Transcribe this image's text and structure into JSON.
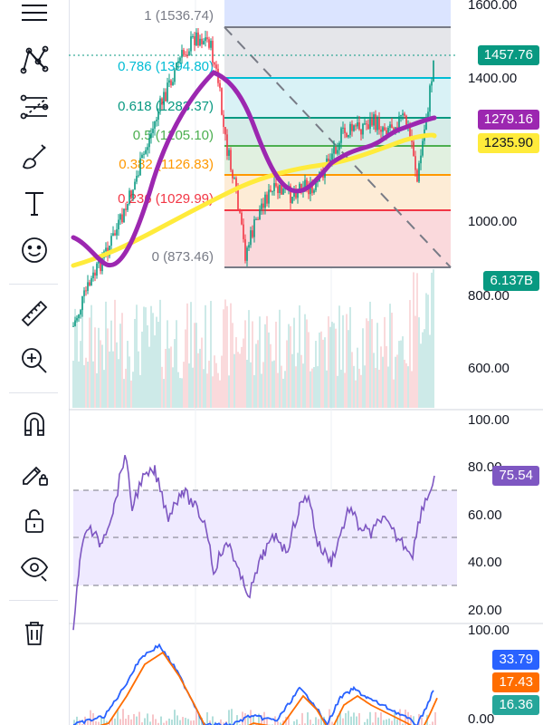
{
  "toolbar": {
    "tools": [
      "menu-icon",
      "pattern-icon",
      "fib-retracement-icon",
      "brush-icon",
      "text-icon",
      "emoji-icon",
      "ruler-icon",
      "zoom-in-icon",
      "magnet-icon",
      "lock-drawing-icon",
      "unlock-icon",
      "eye-icon",
      "trash-icon"
    ]
  },
  "main_pane": {
    "price_axis": [
      "1600.00",
      "1400.00",
      "1000.00",
      "800.00",
      "600.00"
    ],
    "fib_levels": [
      {
        "ratio": "1",
        "price": "(1536.74)",
        "label": "1 (1536.74)",
        "color": "#787b86"
      },
      {
        "ratio": "0.786",
        "price": "(1394.80)",
        "label": "0.786 (1394.80)",
        "color": "#00bcd4"
      },
      {
        "ratio": "0.618",
        "price": "(1283.37)",
        "label": "0.618 (1283.37)",
        "color": "#089981"
      },
      {
        "ratio": "0.5",
        "price": "(1205.10)",
        "label": "0.5 (1205.10)",
        "color": "#4caf50"
      },
      {
        "ratio": "0.382",
        "price": "(1126.83)",
        "label": "0.382 (1126.83)",
        "color": "#ff9800"
      },
      {
        "ratio": "0.236",
        "price": "(1029.99)",
        "label": "0.236 (1029.99)",
        "color": "#f23645"
      },
      {
        "ratio": "0",
        "price": "(873.46)",
        "label": "0 (873.46)",
        "color": "#787b86"
      }
    ],
    "badges": {
      "last_price": "1457.76",
      "ma_fast": "1279.16",
      "ma_slow": "1235.90",
      "volume": "6.137B"
    },
    "colors": {
      "last_price": "#089981",
      "ma_fast": "#9c27b0",
      "ma_slow": "#ffeb3b",
      "volume": "#089981"
    }
  },
  "rsi_pane": {
    "axis": [
      "100.00",
      "80.00",
      "60.00",
      "40.00",
      "20.00"
    ],
    "value": "75.54",
    "color": "#7e57c2"
  },
  "macd_pane": {
    "axis": [
      "100.00",
      "0.00"
    ],
    "values": [
      "33.79",
      "17.43",
      "16.36"
    ],
    "colors": [
      "#2962ff",
      "#ff6d00",
      "#26a69a"
    ]
  }
}
